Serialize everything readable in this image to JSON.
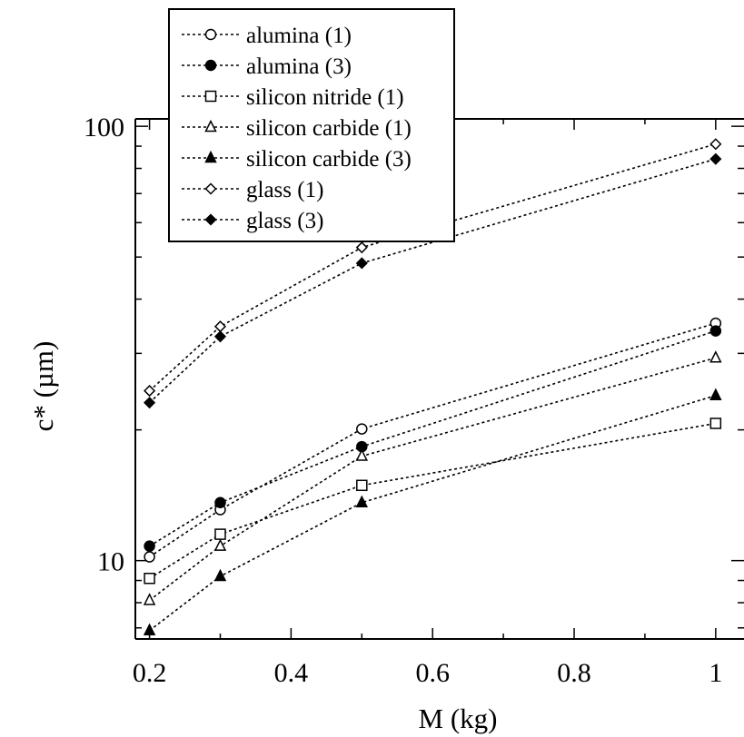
{
  "chart_data": {
    "type": "line",
    "xlabel": "M (kg)",
    "ylabel": "c* (µm)",
    "xlim": [
      0.18,
      1.04
    ],
    "ylim": [
      6.6,
      104
    ],
    "yscale": "log",
    "xscale": "linear",
    "grid": false,
    "legend_position": "top-left",
    "x_ticks": [
      0.2,
      0.4,
      0.6,
      0.8,
      1
    ],
    "x_tick_labels": [
      "0.2",
      "0.4",
      "0.6",
      "0.8",
      "1"
    ],
    "y_major_ticks": [
      10,
      100
    ],
    "y_tick_labels": [
      "10",
      "100"
    ],
    "y_minor_ticks": [
      7,
      8,
      9,
      20,
      30,
      40,
      50,
      60,
      70,
      80,
      90
    ],
    "x": [
      0.2,
      0.3,
      0.5,
      1.0
    ],
    "series": [
      {
        "name": "alumina (1)",
        "marker": "circle",
        "filled": false,
        "values": [
          10.2,
          13.1,
          20.1,
          35.2
        ]
      },
      {
        "name": "alumina (3)",
        "marker": "circle",
        "filled": true,
        "values": [
          10.8,
          13.6,
          18.3,
          33.8
        ]
      },
      {
        "name": "silicon nitride (1)",
        "marker": "square",
        "filled": false,
        "values": [
          9.1,
          11.5,
          14.9,
          20.7
        ]
      },
      {
        "name": "silicon carbide (1)",
        "marker": "triangle",
        "filled": false,
        "values": [
          8.1,
          10.8,
          17.4,
          29.3
        ]
      },
      {
        "name": "silicon carbide (3)",
        "marker": "triangle",
        "filled": true,
        "values": [
          6.9,
          9.2,
          13.6,
          24.0
        ]
      },
      {
        "name": "glass (1)",
        "marker": "diamond",
        "filled": false,
        "values": [
          24.6,
          34.6,
          52.6,
          91.0
        ]
      },
      {
        "name": "glass (3)",
        "marker": "diamond",
        "filled": true,
        "values": [
          23.1,
          32.8,
          48.4,
          84.1
        ]
      }
    ]
  }
}
